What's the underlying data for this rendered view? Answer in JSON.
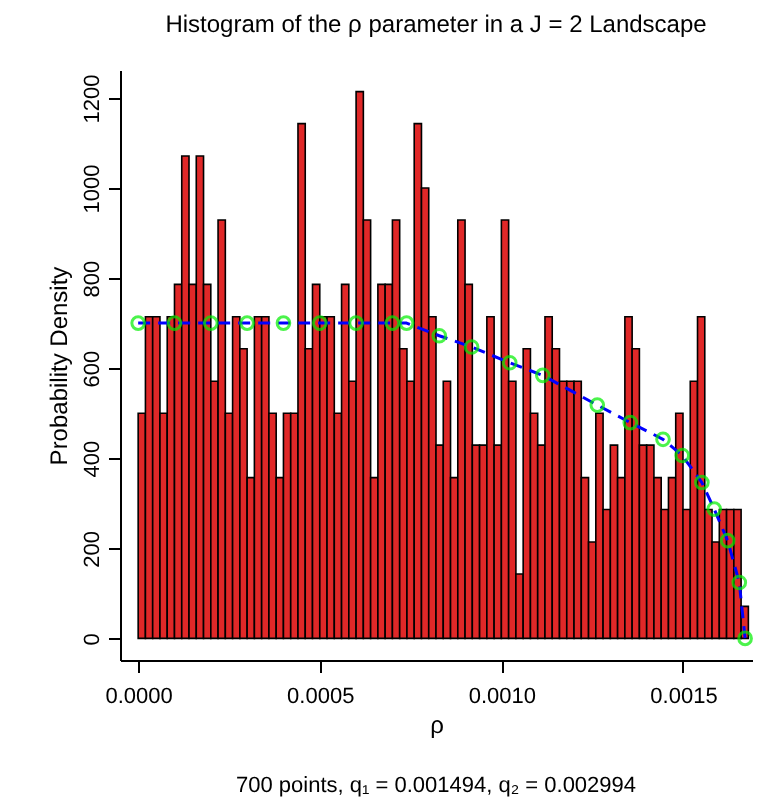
{
  "chart_data": {
    "type": "histogram",
    "title": "Histogram of the ρ parameter in a J = 2 Landscape",
    "xlabel": "ρ",
    "ylabel": "Probability Density",
    "annotations": [
      "700 points, q₁ = 0.001494, q₂ = 0.002994"
    ],
    "bins": [
      0,
      2e-05,
      4e-05,
      6e-05,
      8e-05,
      0.0001,
      0.00012,
      0.00014,
      0.00016,
      0.00018,
      0.0002,
      0.00022,
      0.00024,
      0.00026,
      0.00028,
      0.0003,
      0.00032,
      0.00034,
      0.00036,
      0.00038,
      0.0004,
      0.00042,
      0.00044,
      0.00046,
      0.00048,
      0.0005,
      0.00052,
      0.00054,
      0.00056,
      0.00058,
      0.0006,
      0.00062,
      0.00064,
      0.00066,
      0.00068,
      0.0007,
      0.00072,
      0.00074,
      0.00076,
      0.00078,
      0.0008,
      0.00082,
      0.00084,
      0.00086,
      0.00088,
      0.0009,
      0.00092,
      0.00094,
      0.00096,
      0.00098,
      0.001,
      0.00102,
      0.00104,
      0.00106,
      0.00108,
      0.0011,
      0.00112,
      0.00114,
      0.00116,
      0.00118,
      0.0012,
      0.00122,
      0.00124,
      0.00126,
      0.00128,
      0.0013,
      0.00132,
      0.00134,
      0.00136,
      0.00138,
      0.0014,
      0.00142,
      0.00144,
      0.00146,
      0.00148,
      0.0015,
      0.00152,
      0.00154,
      0.00156,
      0.00158,
      0.0016,
      0.00162,
      0.00164,
      0.00166,
      0.00168
    ],
    "values": [
      500,
      714,
      714,
      500,
      714,
      786,
      1071,
      786,
      1071,
      786,
      571,
      929,
      500,
      714,
      643,
      357,
      714,
      714,
      500,
      357,
      500,
      500,
      1143,
      643,
      786,
      714,
      714,
      500,
      786,
      571,
      1214,
      929,
      357,
      786,
      786,
      929,
      643,
      571,
      1143,
      1000,
      714,
      429,
      571,
      357,
      929,
      786,
      429,
      429,
      714,
      429,
      929,
      571,
      143,
      643,
      500,
      429,
      714,
      643,
      571,
      571,
      571,
      357,
      214,
      500,
      286,
      429,
      357,
      714,
      643,
      429,
      429,
      357,
      286,
      357,
      500,
      286,
      571,
      714,
      286,
      214,
      286,
      286,
      286,
      71
    ],
    "color": "#e02828",
    "series": [
      {
        "type": "line",
        "color": "#0000ff",
        "line_style": "dashed",
        "marker": "none",
        "x": [
          0,
          0.0001,
          0.0002,
          0.0003,
          0.0004,
          0.0005,
          0.0006,
          0.0007,
          0.000739,
          0.000829,
          0.000918,
          0.001023,
          0.001114,
          0.001264,
          0.001355,
          0.001445,
          0.001498,
          0.001552,
          0.001586,
          0.001623,
          0.001655,
          0.001671
        ],
        "values": [
          700,
          700,
          700,
          700,
          700,
          700,
          700,
          700,
          700,
          672,
          647,
          612,
          584,
          518,
          479,
          442,
          406,
          346,
          287,
          217,
          124,
          0
        ]
      },
      {
        "type": "scatter",
        "color": "#00ee00",
        "marker": "circle",
        "x": [
          0,
          0.0001,
          0.0002,
          0.0003,
          0.0004,
          0.0005,
          0.0006,
          0.0007,
          0.000739,
          0.000829,
          0.000918,
          0.001023,
          0.001114,
          0.001264,
          0.001355,
          0.001445,
          0.001498,
          0.001552,
          0.001586,
          0.001623,
          0.001655,
          0.001671
        ],
        "values": [
          700,
          700,
          700,
          700,
          700,
          700,
          700,
          700,
          700,
          672,
          647,
          612,
          584,
          518,
          479,
          442,
          406,
          346,
          287,
          217,
          124,
          0
        ]
      }
    ],
    "xlim": [
      -5e-05,
      0.00169
    ],
    "xticks": [
      {
        "value": 0,
        "label": "0.0000"
      },
      0.0005,
      {
        "value": 0.001,
        "label": "0.0010"
      },
      0.0015
    ],
    "ylim": [
      -48,
      1262
    ],
    "yticks": [
      0,
      200,
      400,
      600,
      800,
      1000,
      1200
    ],
    "grid": false
  }
}
